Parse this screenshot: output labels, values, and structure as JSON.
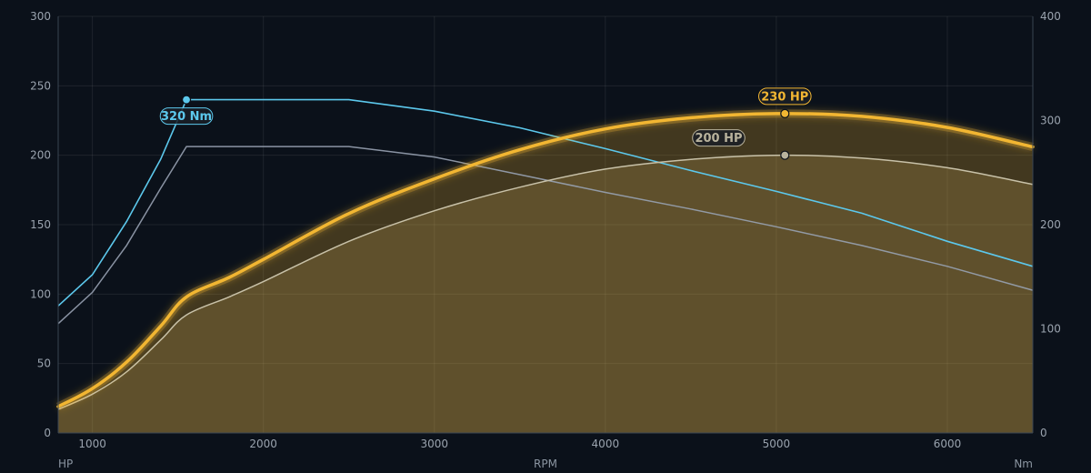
{
  "chart_data": {
    "type": "line",
    "xlabel": "RPM",
    "ylabel_left": "HP",
    "ylabel_right": "Nm",
    "xlim": [
      800,
      6500
    ],
    "ylim_left": [
      0,
      300
    ],
    "ylim_right": [
      0,
      400
    ],
    "x_ticks": [
      1000,
      2000,
      3000,
      4000,
      5000,
      6000
    ],
    "y_ticks_left": [
      0,
      50,
      100,
      150,
      200,
      250,
      300
    ],
    "y_ticks_right": [
      0,
      100,
      200,
      300,
      400
    ],
    "grid": true,
    "series": [
      {
        "axis": "left",
        "color": "#f2b632",
        "x": [
          800,
          1000,
          1200,
          1400,
          1550,
          1800,
          2000,
          2500,
          3000,
          3500,
          4000,
          4500,
          5000,
          5500,
          6000,
          6500
        ],
        "values": [
          19,
          32,
          51,
          77,
          98,
          112,
          125,
          158,
          183,
          204,
          219,
          227,
          230,
          228,
          220,
          206
        ]
      },
      {
        "axis": "left",
        "color": "#c8c1a8",
        "x": [
          800,
          1000,
          1200,
          1400,
          1550,
          1800,
          2000,
          2500,
          3000,
          3500,
          4000,
          4500,
          5000,
          5500,
          6000,
          6500
        ],
        "values": [
          17,
          28,
          44,
          67,
          85,
          98,
          109,
          138,
          160,
          177,
          190,
          197,
          200,
          198,
          191,
          179
        ]
      },
      {
        "axis": "right",
        "color": "#5cc8ec",
        "x": [
          800,
          1000,
          1200,
          1400,
          1550,
          2000,
          2500,
          3000,
          3500,
          4000,
          4500,
          5000,
          5500,
          6000,
          6500
        ],
        "values": [
          122,
          152,
          203,
          263,
          320,
          320,
          320,
          309,
          293,
          273,
          252,
          232,
          211,
          184,
          160
        ]
      },
      {
        "axis": "right",
        "color": "#98a2b2",
        "x": [
          800,
          1000,
          1200,
          1400,
          1550,
          2000,
          2500,
          3000,
          3500,
          4000,
          4500,
          5000,
          5500,
          6000,
          6500
        ],
        "values": [
          105,
          135,
          180,
          235,
          275,
          275,
          275,
          265,
          248,
          231,
          215,
          198,
          180,
          160,
          137
        ]
      }
    ],
    "annotations": [
      {
        "series_index": 0,
        "x": 5050,
        "y": 230,
        "text": "230 HP",
        "color": "#f2b632",
        "position": "above"
      },
      {
        "series_index": 1,
        "x": 5050,
        "y": 200,
        "text": "200 HP",
        "color": "#b8b29c",
        "position": "left-above"
      },
      {
        "series_index": 2,
        "x": 1550,
        "y": 320,
        "text": "320 Nm",
        "color": "#5cc8ec",
        "position": "below"
      }
    ]
  }
}
